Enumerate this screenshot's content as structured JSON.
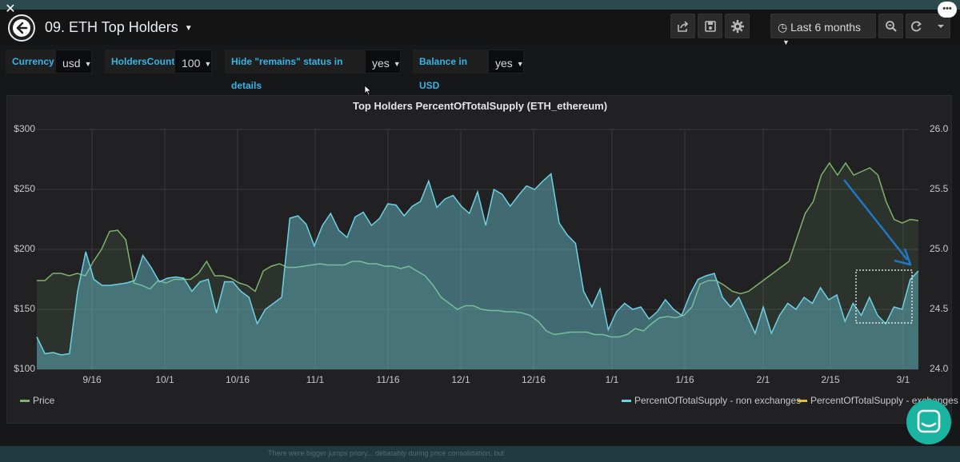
{
  "header": {
    "title": "09. ETH Top Holders",
    "time_range": "Last 6 months"
  },
  "variables": [
    {
      "label": "Currency",
      "value": "usd"
    },
    {
      "label": "HoldersCount",
      "value": "100"
    },
    {
      "label": "Hide \"remains\" status in details",
      "value": "yes"
    },
    {
      "label": "Balance in USD",
      "value": "yes"
    }
  ],
  "colors": {
    "price": "#7eb26d",
    "non_exchanges": "#6ed0e0",
    "exchanges": "#eab839",
    "annotation_arrow": "#1f78c1"
  },
  "footer_text": "There were bigger jumps priory... debatably during price consolidation, but",
  "chart_data": {
    "type": "area",
    "title": "Top Holders PercentOfTotalSupply (ETH_ethereum)",
    "x_ticks": [
      "9/16",
      "10/1",
      "10/16",
      "11/1",
      "11/16",
      "12/1",
      "12/16",
      "1/1",
      "1/16",
      "2/1",
      "2/15",
      "3/1"
    ],
    "y_left": {
      "ticks": [
        "$300",
        "$250",
        "$200",
        "$150",
        "$100"
      ],
      "ylim": [
        100,
        300
      ]
    },
    "y_right": {
      "ticks": [
        "26.0",
        "25.5",
        "25.0",
        "24.5",
        "24.0"
      ],
      "ylim": [
        24.0,
        26.0
      ]
    },
    "series": [
      {
        "name": "Price",
        "axis": "left",
        "values": [
          174,
          174,
          180,
          180,
          178,
          180,
          178,
          190,
          200,
          215,
          216,
          208,
          172,
          170,
          167,
          174,
          172,
          175,
          175,
          175,
          180,
          190,
          178,
          178,
          176,
          172,
          170,
          165,
          182,
          186,
          188,
          185,
          185,
          186,
          187,
          188,
          187,
          187,
          187,
          190,
          190,
          188,
          188,
          186,
          186,
          184,
          186,
          182,
          178,
          170,
          160,
          155,
          150,
          153,
          153,
          150,
          149,
          149,
          148,
          148,
          147,
          145,
          140,
          132,
          129,
          130,
          131,
          131,
          131,
          129,
          129,
          127,
          127,
          129,
          134,
          132,
          138,
          143,
          144,
          143,
          145,
          152,
          171,
          174,
          174,
          170,
          165,
          163,
          165,
          170,
          175,
          180,
          185,
          190,
          210,
          230,
          240,
          262,
          272,
          262,
          272,
          262,
          265,
          268,
          262,
          240,
          225,
          222,
          225,
          224
        ],
        "fill": true
      },
      {
        "name": "PercentOfTotalSupply - non exchanges",
        "axis": "right",
        "values": [
          24.27,
          24.13,
          24.14,
          24.12,
          24.13,
          24.65,
          24.98,
          24.75,
          24.7,
          24.7,
          24.71,
          24.72,
          24.74,
          24.95,
          24.85,
          24.73,
          24.76,
          24.77,
          24.76,
          24.65,
          24.73,
          24.75,
          24.47,
          24.73,
          24.73,
          24.65,
          24.6,
          24.38,
          24.5,
          24.55,
          24.6,
          25.26,
          25.28,
          25.21,
          25.03,
          25.2,
          25.3,
          25.16,
          25.1,
          25.27,
          25.31,
          25.2,
          25.26,
          25.38,
          25.37,
          25.28,
          25.36,
          25.4,
          25.57,
          25.35,
          25.42,
          25.45,
          25.36,
          25.3,
          25.48,
          25.2,
          25.5,
          25.46,
          25.36,
          25.45,
          25.53,
          25.5,
          25.57,
          25.63,
          25.22,
          25.12,
          25.05,
          24.65,
          24.52,
          24.67,
          24.33,
          24.48,
          24.55,
          24.5,
          24.52,
          24.42,
          24.48,
          24.58,
          24.5,
          24.45,
          24.62,
          24.75,
          24.78,
          24.8,
          24.6,
          24.52,
          24.6,
          24.45,
          24.3,
          24.52,
          24.3,
          24.45,
          24.55,
          24.5,
          24.6,
          24.55,
          24.68,
          24.58,
          24.62,
          24.4,
          24.55,
          24.45,
          24.6,
          24.45,
          24.38,
          24.52,
          24.5,
          24.75,
          24.82
        ],
        "fill": true
      },
      {
        "name": "PercentOfTotalSupply - exchanges",
        "axis": "right",
        "values": [],
        "fill": false
      }
    ],
    "legend": "bottom",
    "grid": true
  }
}
